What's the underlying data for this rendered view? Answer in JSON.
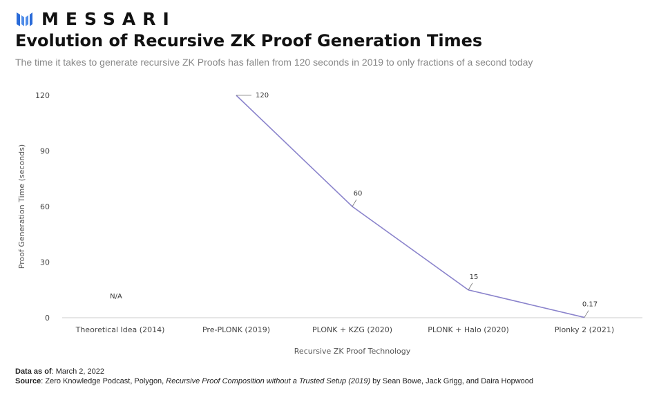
{
  "brand": {
    "name": "MESSARI",
    "icon": "messari-logo-icon",
    "color": "#2a6bd8"
  },
  "title": "Evolution of Recursive ZK Proof Generation Times",
  "subtitle": "The time it takes to generate recursive ZK Proofs has fallen from 120 seconds in 2019 to only fractions of a second today",
  "chart_data": {
    "type": "line",
    "categories": [
      "Theoretical Idea (2014)",
      "Pre-PLONK (2019)",
      "PLONK + KZG (2020)",
      "PLONK + Halo (2020)",
      "Plonky 2 (2021)"
    ],
    "values": [
      null,
      120,
      60,
      15,
      0.17
    ],
    "data_labels": [
      "N/A",
      "120",
      "60",
      "15",
      "0.17"
    ],
    "xlabel": "Recursive ZK Proof Technology",
    "ylabel": "Proof Generation Time (seconds)",
    "yticks": [
      "0",
      "30",
      "60",
      "90",
      "120"
    ],
    "ylim": [
      0,
      120
    ],
    "grid": false,
    "line_color": "#8b84cc"
  },
  "footer": {
    "data_as_of_label": "Data as of",
    "data_as_of_value": ": March 2, 2022",
    "source_label": "Source",
    "source_text_1": ": Zero Knowledge Podcast, Polygon, ",
    "source_italic": "Recursive Proof Composition without a Trusted Setup (2019)",
    "source_text_2": " by Sean Bowe, Jack Grigg, and Daira Hopwood"
  }
}
